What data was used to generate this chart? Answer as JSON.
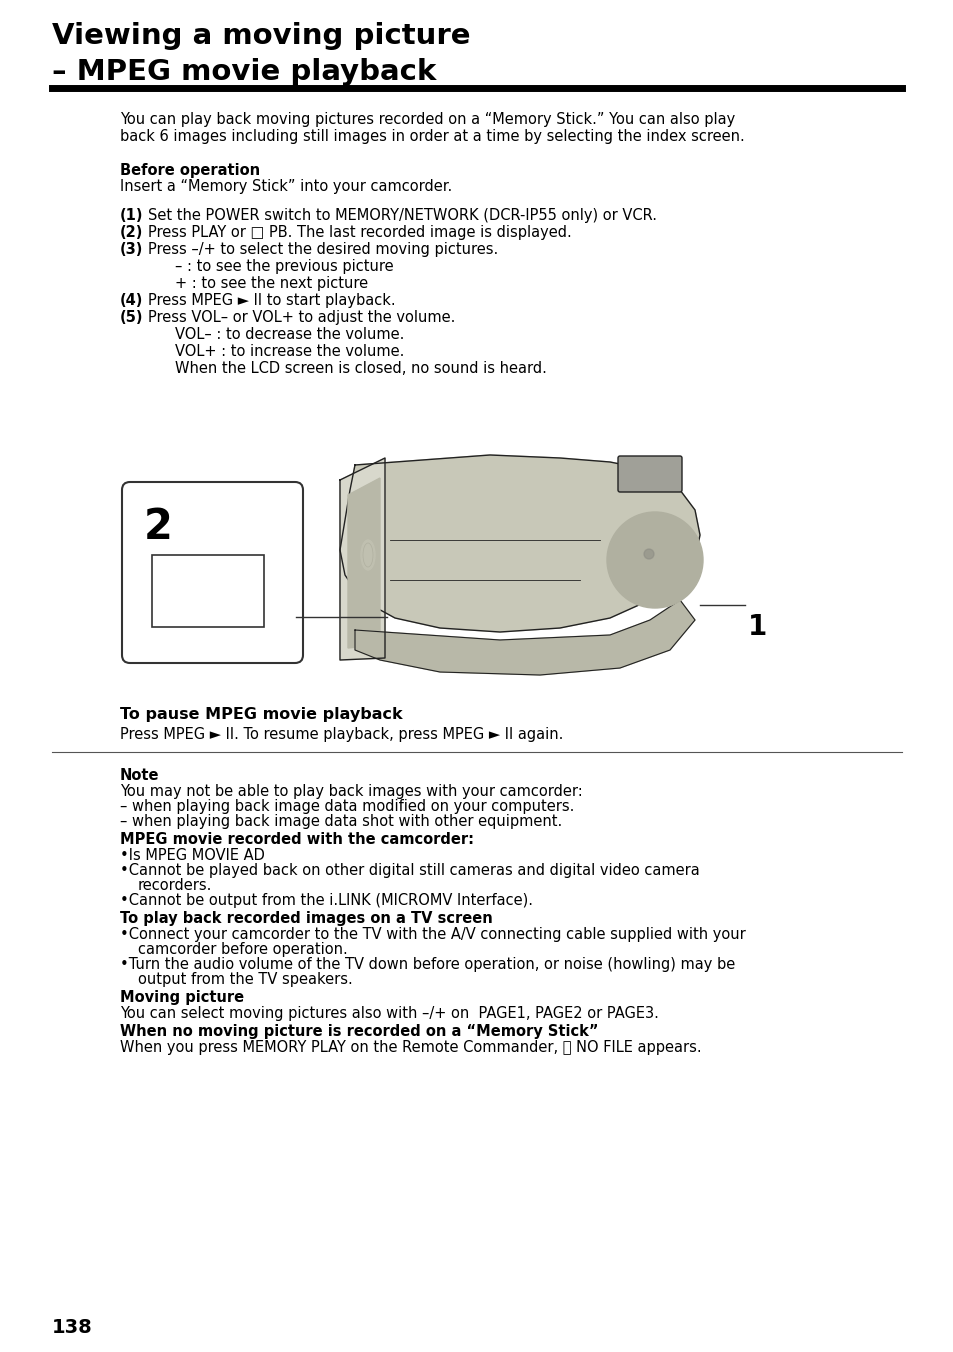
{
  "title_line1": "Viewing a moving picture",
  "title_line2": "– MPEG movie playback",
  "bg_color": "#ffffff",
  "text_color": "#000000",
  "page_number": "138",
  "intro_text": "You can play back moving pictures recorded on a “Memory Stick.” You can also play\nback 6 images including still images in order at a time by selecting the index screen.",
  "before_op_label": "Before operation",
  "before_op_text": "Insert a “Memory Stick” into your camcorder.",
  "step1_num": "(1)",
  "step1_text": "Set the POWER switch to MEMORY/NETWORK (DCR-IP55 only) or VCR.",
  "step2_num": "(2)",
  "step2_text": "Press PLAY or □ PB. The last recorded image is displayed.",
  "step3_num": "(3)",
  "step3_text": "Press –/+ to select the desired moving pictures.",
  "step3a": "– : to see the previous picture",
  "step3b": "+ : to see the next picture",
  "step4_num": "(4)",
  "step4_text": "Press MPEG ► II to start playback.",
  "step5_num": "(5)",
  "step5_text": "Press VOL– or VOL+ to adjust the volume.",
  "step5a": "VOL– : to decrease the volume.",
  "step5b": "VOL+ : to increase the volume.",
  "step5c": "When the LCD screen is closed, no sound is heard.",
  "pause_title": "To pause MPEG movie playback",
  "pause_text": "Press MPEG ► II. To resume playback, press MPEG ► II again.",
  "note_label": "Note",
  "note_line1": "You may not be able to play back images with your camcorder:",
  "note_line2": "– when playing back image data modified on your computers.",
  "note_line3": "– when playing back image data shot with other equipment.",
  "mpeg_label": "MPEG movie recorded with the camcorder:",
  "mpeg_b1": "Is MPEG MOVIE AD",
  "mpeg_b2a": "Cannot be played back on other digital still cameras and digital video camera",
  "mpeg_b2b": "recorders.",
  "mpeg_b3": "Cannot be output from the i.LINK (MICROMV Interface).",
  "tv_label": "To play back recorded images on a TV screen",
  "tv_b1a": "Connect your camcorder to the TV with the A/V connecting cable supplied with your",
  "tv_b1b": "camcorder before operation.",
  "tv_b2a": "Turn the audio volume of the TV down before operation, or noise (howling) may be",
  "tv_b2b": "output from the TV speakers.",
  "moving_label": "Moving picture",
  "moving_text": "You can select moving pictures also with –/+ on  PAGE1, PAGE2 or PAGE3.",
  "nomove_label": "When no moving picture is recorded on a “Memory Stick”",
  "nomove_text": "When you press MEMORY PLAY on the Remote Commander, ⍉ NO FILE appears.",
  "cam_body_color": "#c8c8b8",
  "cam_dark_color": "#888878",
  "cam_border_color": "#222222",
  "label_num": "2",
  "label_1": "1"
}
